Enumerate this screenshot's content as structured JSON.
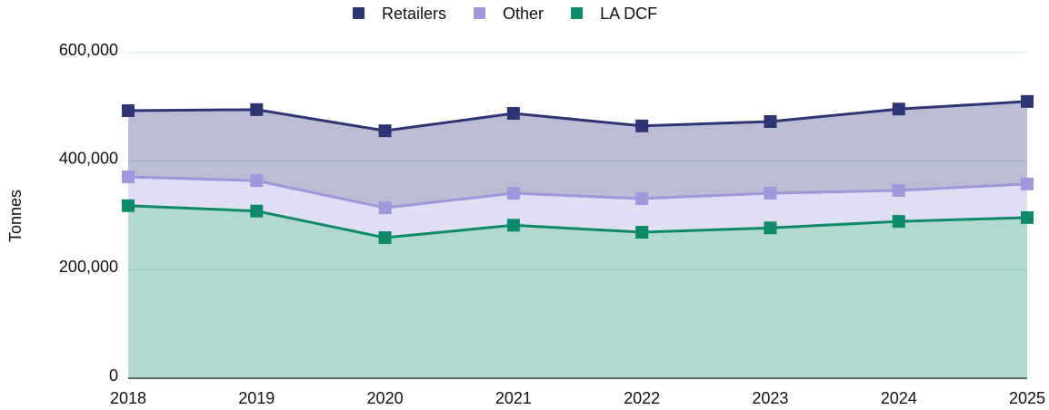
{
  "chart_data": {
    "type": "stacked_area",
    "y_label": "Tonnes",
    "categories": [
      "2018",
      "2019",
      "2020",
      "2021",
      "2022",
      "2023",
      "2024",
      "2025"
    ],
    "series": [
      {
        "name": "Retailers",
        "color": "#2d3575",
        "values": [
          122000,
          131000,
          142000,
          147000,
          134000,
          132000,
          150000,
          152000
        ]
      },
      {
        "name": "Other",
        "color": "#9d97db",
        "values": [
          53000,
          56000,
          55000,
          59000,
          62000,
          64000,
          57000,
          62000
        ]
      },
      {
        "name": "LA DCF",
        "color": "#0e8a6b",
        "values": [
          318000,
          308000,
          259000,
          282000,
          269000,
          277000,
          289000,
          296000
        ]
      }
    ],
    "ylim": [
      0,
      600000
    ],
    "yticks": [
      0,
      {
        "value": 200000,
        "label": "200,000"
      },
      {
        "value": 400000,
        "label": "400,000"
      },
      {
        "value": 600000,
        "label": "600,000"
      }
    ],
    "grid": true,
    "legend": "top"
  }
}
